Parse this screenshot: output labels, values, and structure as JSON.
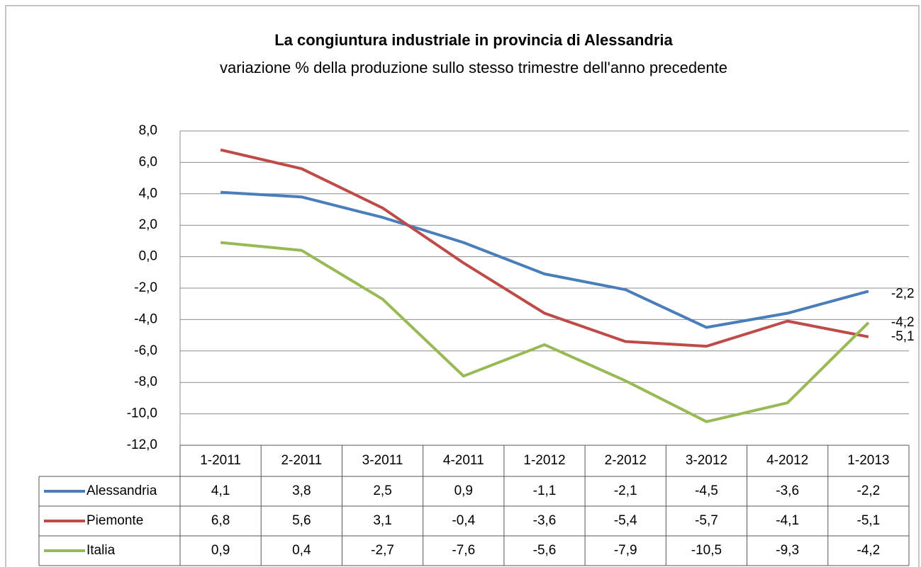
{
  "chart_data": {
    "type": "line",
    "title": "La congiuntura industriale in provincia di Alessandria",
    "subtitle": "variazione % della produzione sullo stesso trimestre dell'anno precedente",
    "categories": [
      "1-2011",
      "2-2011",
      "3-2011",
      "4-2011",
      "1-2012",
      "2-2012",
      "3-2012",
      "4-2012",
      "1-2013"
    ],
    "series": [
      {
        "name": "Alessandria",
        "color": "#4a7ebb",
        "values": [
          4.1,
          3.8,
          2.5,
          0.9,
          -1.1,
          -2.1,
          -4.5,
          -3.6,
          -2.2
        ],
        "value_labels": [
          "4,1",
          "3,8",
          "2,5",
          "0,9",
          "-1,1",
          "-2,1",
          "-4,5",
          "-3,6",
          "-2,2"
        ]
      },
      {
        "name": "Piemonte",
        "color": "#be4b48",
        "values": [
          6.8,
          5.6,
          3.1,
          -0.4,
          -3.6,
          -5.4,
          -5.7,
          -4.1,
          -5.1
        ],
        "value_labels": [
          "6,8",
          "5,6",
          "3,1",
          "-0,4",
          "-3,6",
          "-5,4",
          "-5,7",
          "-4,1",
          "-5,1"
        ]
      },
      {
        "name": "Italia",
        "color": "#98b954",
        "values": [
          0.9,
          0.4,
          -2.7,
          -7.6,
          -5.6,
          -7.9,
          -10.5,
          -9.3,
          -4.2
        ],
        "value_labels": [
          "0,9",
          "0,4",
          "-2,7",
          "-7,6",
          "-5,6",
          "-7,9",
          "-10,5",
          "-9,3",
          "-4,2"
        ]
      }
    ],
    "ylim": [
      -12,
      8
    ],
    "yticks": [
      {
        "value": -12,
        "label": "-12,0"
      },
      {
        "value": -10,
        "label": "-10,0"
      },
      {
        "value": -8,
        "label": "-8,0"
      },
      {
        "value": -6,
        "label": "-6,0"
      },
      {
        "value": -4,
        "label": "-4,0"
      },
      {
        "value": -2,
        "label": "-2,0"
      },
      {
        "value": 0,
        "label": "0,0"
      },
      {
        "value": 2,
        "label": "2,0"
      },
      {
        "value": 4,
        "label": "4,0"
      },
      {
        "value": 6,
        "label": "6,0"
      },
      {
        "value": 8,
        "label": "8,0"
      }
    ],
    "grid": true,
    "data_table": true,
    "end_labels": true,
    "negative_color": "#ff0000"
  }
}
